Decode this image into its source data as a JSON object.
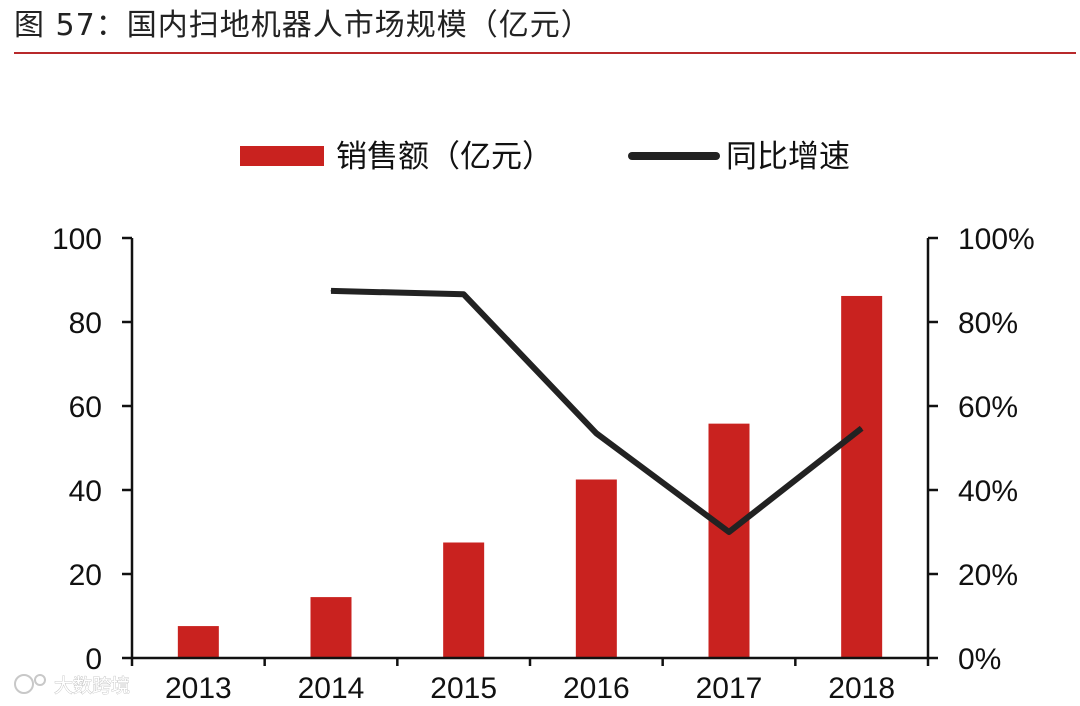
{
  "figure": {
    "title": "图 57：国内扫地机器人市场规模（亿元）",
    "watermark": "大数跨境"
  },
  "colors": {
    "bar": "#c9221f",
    "line": "#222222",
    "title_rule": "#b8292b",
    "axis": "#111111"
  },
  "chart_data": {
    "type": "bar",
    "categories": [
      "2013",
      "2014",
      "2015",
      "2016",
      "2017",
      "2018"
    ],
    "series": [
      {
        "name": "销售额（亿元）",
        "type": "bar",
        "axis": "left",
        "values": [
          7.6,
          14.5,
          27.5,
          42.5,
          55.8,
          86.2
        ]
      },
      {
        "name": "同比增速",
        "type": "line",
        "axis": "right",
        "values": [
          null,
          0.874,
          0.866,
          0.535,
          0.3,
          0.547
        ]
      }
    ],
    "y_left": {
      "min": 0,
      "max": 100,
      "ticks": [
        "0",
        "20",
        "40",
        "60",
        "80",
        "100"
      ]
    },
    "y_right": {
      "min": 0,
      "max": 1,
      "ticks": [
        "0%",
        "20%",
        "40%",
        "60%",
        "80%",
        "100%"
      ]
    },
    "legend_position": "top",
    "grid": false
  }
}
